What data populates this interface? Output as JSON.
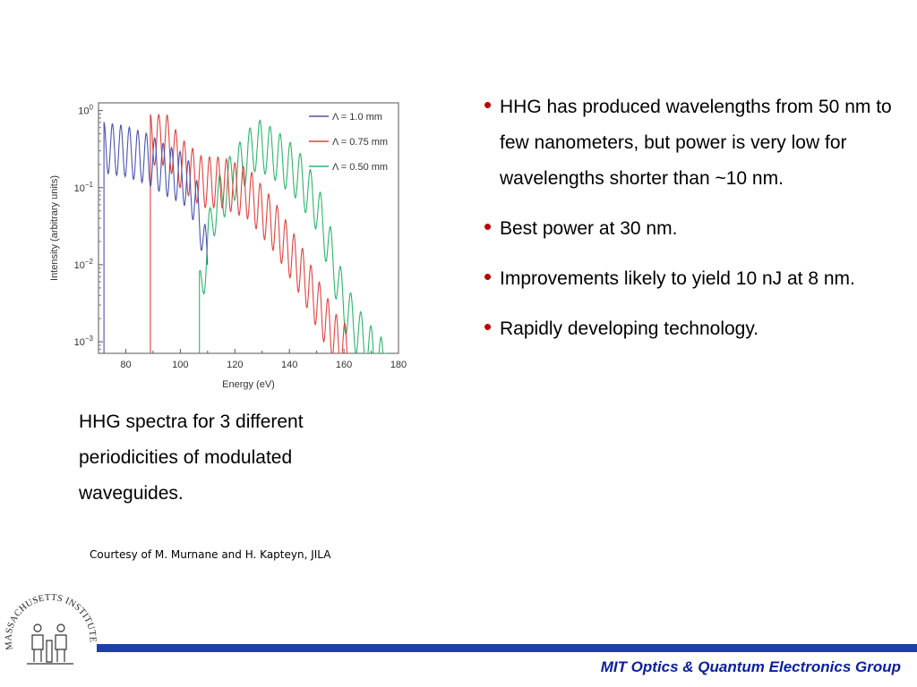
{
  "chart_data": {
    "type": "line",
    "title": "",
    "xlabel": "Energy (eV)",
    "ylabel": "Intensity (arbitrary units)",
    "xlim": [
      70,
      180
    ],
    "ylim_log10": [
      -3.15,
      0.1
    ],
    "y_scale": "log",
    "x_ticks": [
      80,
      100,
      120,
      140,
      160,
      180
    ],
    "x_tick_labels": [
      "80",
      "100",
      "120",
      "140",
      "160",
      "180"
    ],
    "y_ticks_log10": [
      0,
      -1,
      -2,
      -3
    ],
    "y_tick_labels": [
      [
        "10",
        "0"
      ],
      [
        "10",
        "−1"
      ],
      [
        "10",
        "−2"
      ],
      [
        "10",
        "−3"
      ]
    ],
    "legend_position": "top-right",
    "series": [
      {
        "name": "Λ = 1.0 mm",
        "color": "#4a55b0",
        "spacing": 3.1,
        "points": [
          [
            72,
            -0.15
          ],
          [
            80,
            -0.2
          ],
          [
            88,
            -0.3
          ],
          [
            95,
            -0.45
          ],
          [
            101,
            -0.55
          ],
          [
            104,
            -0.7
          ],
          [
            106,
            -0.9
          ],
          [
            108,
            -1.2
          ],
          [
            110,
            -1.7
          ]
        ]
      },
      {
        "name": "Λ = 0.75 mm",
        "color": "#e0443e",
        "spacing": 3.1,
        "points": [
          [
            89,
            -0.05
          ],
          [
            95,
            -0.05
          ],
          [
            100,
            -0.35
          ],
          [
            108,
            -0.6
          ],
          [
            115,
            -0.6
          ],
          [
            125,
            -0.75
          ],
          [
            135,
            -1.2
          ],
          [
            145,
            -1.8
          ],
          [
            152,
            -2.3
          ],
          [
            158,
            -2.7
          ],
          [
            162,
            -2.8
          ]
        ]
      },
      {
        "name": "Λ = 0.50 mm",
        "color": "#2db56a",
        "spacing": 3.7,
        "points": [
          [
            107,
            -2.1
          ],
          [
            112,
            -1.0
          ],
          [
            118,
            -0.6
          ],
          [
            128,
            -0.1
          ],
          [
            135,
            -0.25
          ],
          [
            143,
            -0.5
          ],
          [
            150,
            -0.9
          ],
          [
            155,
            -1.5
          ],
          [
            160,
            -2.2
          ],
          [
            166,
            -2.6
          ],
          [
            172,
            -2.9
          ],
          [
            176,
            -3.0
          ]
        ]
      }
    ]
  },
  "caption": [
    "HHG spectra for 3 different",
    "periodicities of modulated",
    "waveguides."
  ],
  "courtesy": "Courtesy of M. Murnane and H. Kapteyn, JILA",
  "bullets": [
    "HHG has produced wavelengths from 50 nm to few nanometers, but power is very low for wavelengths shorter than ~10 nm.",
    "Best power at 30 nm.",
    "Improvements likely to yield 10 nJ at 8 nm.",
    "Rapidly developing technology."
  ],
  "bullet_glyph": "•",
  "logo": {
    "text": "MASSACHUSETTS INSTITUTE OF TECHNOLOGY"
  },
  "footer": {
    "text": "MIT Optics & Quantum Electronics Group",
    "line_color": "#1d3fa8",
    "text_color": "#0a1f9c"
  }
}
